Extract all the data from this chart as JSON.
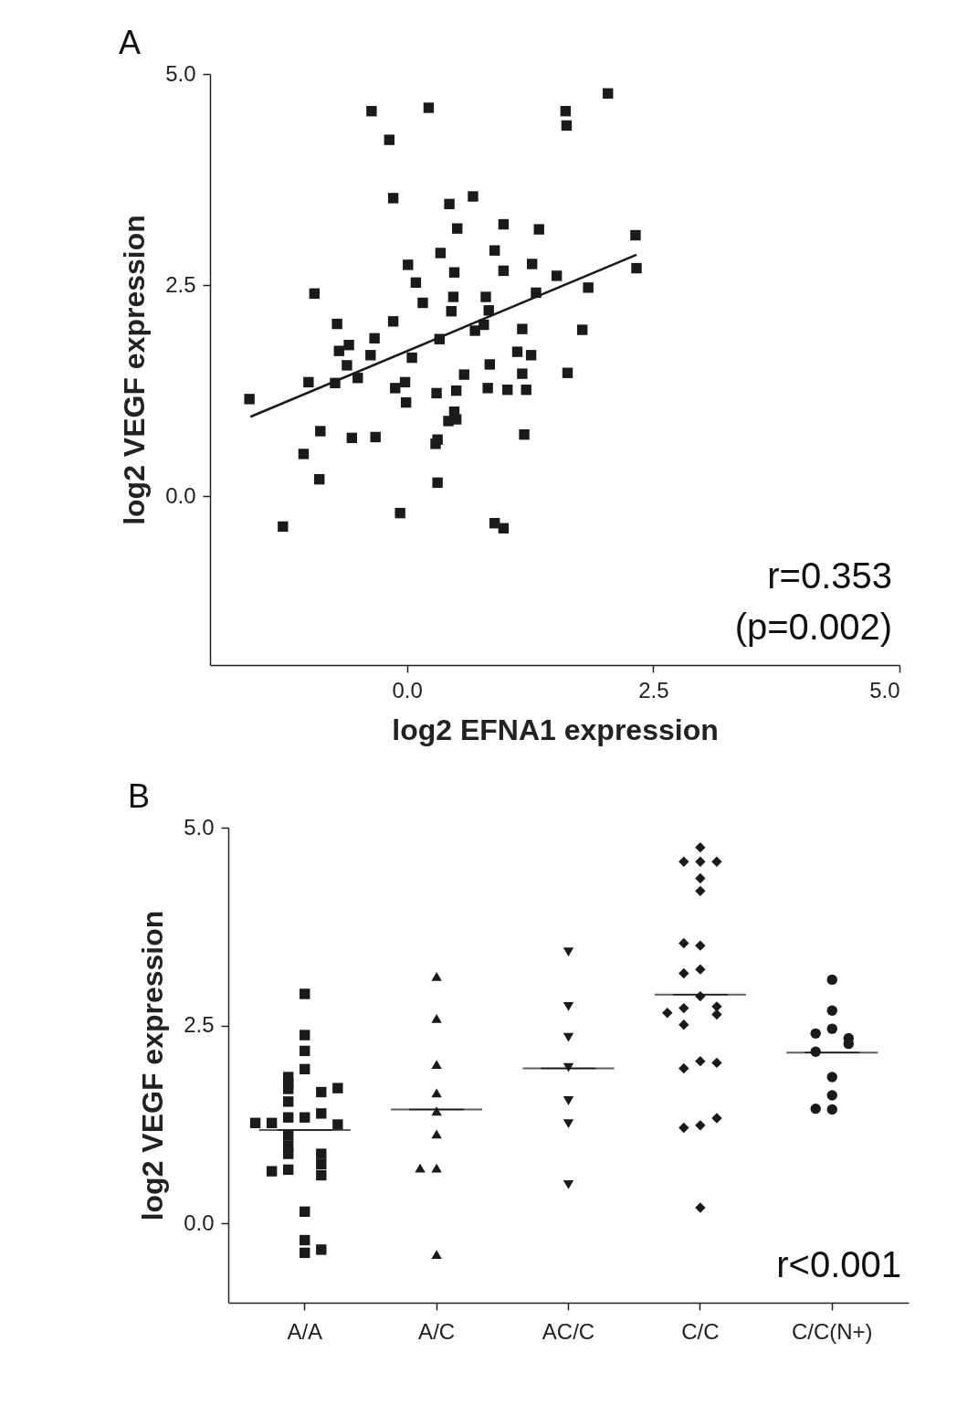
{
  "chart_data": [
    {
      "type": "scatter",
      "title": "A",
      "xlabel": "log2 EFNA1 expression",
      "ylabel": "log2 VEGF expression",
      "xlim": [
        -2,
        5
      ],
      "ylim": [
        -2,
        5
      ],
      "xticks": [
        {
          "value": 0,
          "label": "0.0"
        },
        {
          "value": 2.5,
          "label": "2.5"
        },
        {
          "value": 5,
          "label": "5.0"
        }
      ],
      "yticks": [
        {
          "value": 0,
          "label": "0.0"
        },
        {
          "value": 2.5,
          "label": "2.5"
        },
        {
          "value": 5,
          "label": "5.0"
        }
      ],
      "series": [
        {
          "marker": "square",
          "color": "#1a1a1a",
          "x": [
            -0.36,
            0.22,
            1.61,
            1.62,
            2.04,
            -0.18,
            -0.14,
            0.43,
            0.67,
            0.51,
            0.98,
            1.34,
            2.32,
            0.34,
            0.89,
            0.01,
            0.48,
            0.98,
            1.27,
            1.52,
            2.33,
            0.09,
            1.84,
            -0.94,
            0.16,
            0.47,
            0.8,
            1.31,
            0.45,
            0.83,
            -0.71,
            -0.14,
            0.78,
            0.69,
            1.17,
            1.78,
            -0.33,
            -0.59,
            -0.69,
            0.33,
            -0.37,
            0.05,
            1.12,
            1.26,
            -0.61,
            0.84,
            0.58,
            1.17,
            1.63,
            -1.0,
            -0.73,
            -0.5,
            -0.02,
            -0.12,
            0.3,
            0.5,
            0.82,
            1.02,
            1.21,
            -1.6,
            -0.01,
            0.48,
            0.42,
            0.5,
            -0.88,
            -0.56,
            -0.32,
            0.31,
            0.29,
            1.19,
            -1.05,
            -0.89,
            0.31,
            -0.07,
            -1.26,
            0.89,
            0.98
          ],
          "values": [
            4.56,
            4.6,
            4.56,
            4.39,
            4.77,
            4.22,
            3.53,
            3.46,
            3.55,
            3.17,
            3.22,
            3.16,
            3.09,
            2.88,
            2.91,
            2.74,
            2.65,
            2.67,
            2.75,
            2.61,
            2.7,
            2.53,
            2.47,
            2.4,
            2.29,
            2.36,
            2.36,
            2.41,
            2.19,
            2.2,
            2.04,
            2.07,
            2.03,
            1.96,
            1.98,
            1.97,
            1.87,
            1.79,
            1.72,
            1.86,
            1.67,
            1.64,
            1.71,
            1.67,
            1.55,
            1.56,
            1.44,
            1.45,
            1.46,
            1.35,
            1.34,
            1.4,
            1.35,
            1.28,
            1.22,
            1.25,
            1.28,
            1.26,
            1.26,
            1.15,
            1.11,
            1.0,
            0.89,
            0.91,
            0.77,
            0.69,
            0.7,
            0.67,
            0.62,
            0.73,
            0.5,
            0.2,
            0.16,
            -0.2,
            -0.36,
            -0.32,
            -0.38
          ]
        },
        {
          "type": "line",
          "color": "#1a1a1a",
          "x": [
            -1.59,
            2.33
          ],
          "values": [
            0.94,
            2.86
          ]
        }
      ],
      "annotations": [
        "r=0.353",
        "(p=0.002)"
      ]
    },
    {
      "type": "scatter",
      "title": "B",
      "ylabel": "log2 VEGF expression",
      "categories": [
        "A/A",
        "A/C",
        "AC/C",
        "C/C",
        "C/C(N+)"
      ],
      "ylim": [
        -1,
        5
      ],
      "yticks": [
        {
          "value": 0,
          "label": "0.0"
        },
        {
          "value": 2.5,
          "label": "2.5"
        },
        {
          "value": 5,
          "label": "5.0"
        }
      ],
      "series": [
        {
          "marker": "square",
          "color": "#1a1a1a",
          "x": [
            "A/A",
            "A/A",
            "A/A",
            "A/A",
            "A/A",
            "A/A",
            "A/A",
            "A/A",
            "A/A",
            "A/A",
            "A/A",
            "A/A",
            "A/A",
            "A/A",
            "A/A",
            "A/A",
            "A/A",
            "A/A",
            "A/A",
            "A/A",
            "A/A",
            "A/A",
            "A/A",
            "A/A",
            "A/A",
            "A/A",
            "A/A",
            "A/A"
          ],
          "values": [
            2.9,
            2.38,
            2.18,
            1.95,
            1.85,
            1.77,
            1.7,
            1.66,
            1.71,
            1.54,
            1.34,
            1.34,
            1.39,
            1.27,
            1.25,
            1.27,
            1.11,
            0.98,
            0.88,
            0.88,
            0.75,
            0.68,
            0.61,
            0.66,
            0.15,
            -0.21,
            -0.37,
            -0.33
          ]
        },
        {
          "marker": "triangle",
          "color": "#1a1a1a",
          "x": [
            "A/C",
            "A/C",
            "A/C",
            "A/C",
            "A/C",
            "A/C",
            "A/C",
            "A/C",
            "A/C"
          ],
          "values": [
            3.12,
            2.59,
            2.01,
            1.65,
            1.42,
            1.13,
            0.7,
            0.7,
            -0.39
          ]
        },
        {
          "marker": "triangle-down",
          "color": "#1a1a1a",
          "x": [
            "AC/C",
            "AC/C",
            "AC/C",
            "AC/C",
            "AC/C",
            "AC/C",
            "AC/C"
          ],
          "values": [
            3.43,
            2.74,
            2.35,
            1.97,
            1.55,
            1.26,
            0.49
          ]
        },
        {
          "marker": "diamond",
          "color": "#1a1a1a",
          "x": [
            "C/C",
            "C/C",
            "C/C",
            "C/C",
            "C/C",
            "C/C",
            "C/C",
            "C/C",
            "C/C",
            "C/C",
            "C/C",
            "C/C",
            "C/C",
            "C/C",
            "C/C",
            "C/C",
            "C/C",
            "C/C",
            "C/C",
            "C/C",
            "C/C",
            "C/C",
            "C/C"
          ],
          "values": [
            4.75,
            4.57,
            4.57,
            4.57,
            4.36,
            4.2,
            3.51,
            3.54,
            3.21,
            3.16,
            2.87,
            2.72,
            2.74,
            2.64,
            2.66,
            2.51,
            2.05,
            1.96,
            2.03,
            1.24,
            1.21,
            1.33,
            0.2
          ]
        },
        {
          "marker": "circle",
          "color": "#1a1a1a",
          "x": [
            "C/C(N+)",
            "C/C(N+)",
            "C/C(N+)",
            "C/C(N+)",
            "C/C(N+)",
            "C/C(N+)",
            "C/C(N+)",
            "C/C(N+)",
            "C/C(N+)",
            "C/C(N+)",
            "C/C(N+)"
          ],
          "values": [
            3.08,
            2.69,
            2.46,
            2.4,
            2.34,
            2.27,
            2.17,
            1.85,
            1.62,
            1.44,
            1.45
          ]
        },
        {
          "type": "box",
          "color": "#1a1a1a",
          "boxes": [
            {
              "low": 1.18,
              "q1": 1.18,
              "median": 1.18,
              "q3": 1.18,
              "high": 1.18
            },
            {
              "low": 1.44,
              "q1": 1.44,
              "median": 1.44,
              "q3": 1.44,
              "high": 1.44
            },
            {
              "low": 1.96,
              "q1": 1.96,
              "median": 1.96,
              "q3": 1.96,
              "high": 1.96
            },
            {
              "low": 2.89,
              "q1": 2.89,
              "median": 2.89,
              "q3": 2.89,
              "high": 2.89
            },
            {
              "low": 2.16,
              "q1": 2.16,
              "median": 2.16,
              "q3": 2.16,
              "high": 2.16
            }
          ]
        }
      ],
      "annotations": [
        "r<0.001"
      ]
    }
  ]
}
